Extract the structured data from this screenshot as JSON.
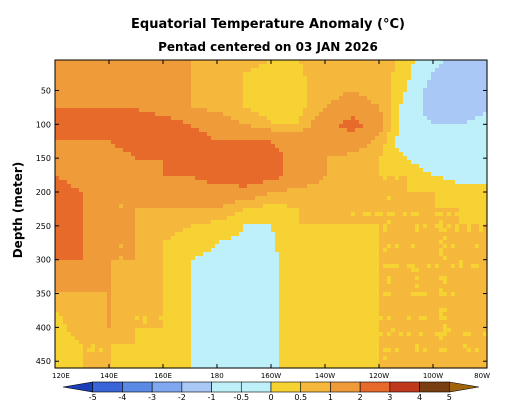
{
  "chart_data": {
    "type": "heatmap",
    "title": "Equatorial Temperature Anomaly (°C)",
    "subtitle": "Pentad centered on 03 JAN 2026",
    "xlabel": "",
    "ylabel": "Depth (meter)",
    "x_tick_labels": [
      "120E",
      "140E",
      "160E",
      "180",
      "160W",
      "140W",
      "120W",
      "100W",
      "80W"
    ],
    "x_tick_lon_east": [
      120,
      140,
      160,
      180,
      200,
      220,
      240,
      260,
      280
    ],
    "xlim_lon_east": [
      120,
      280
    ],
    "y_tick_labels": [
      "50",
      "100",
      "150",
      "200",
      "250",
      "300",
      "350",
      "400",
      "450"
    ],
    "y_tick_values": [
      50,
      100,
      150,
      200,
      250,
      300,
      350,
      400,
      450
    ],
    "ylim_depth_m": [
      5,
      460
    ],
    "y_inverted": true,
    "colorbar": {
      "labels": [
        "-5",
        "-4",
        "-3",
        "-2",
        "-1",
        "-0.5",
        "0",
        "0.5",
        "1",
        "2",
        "3",
        "4",
        "5"
      ],
      "levels": [
        -5,
        -4,
        -3,
        -2,
        -1,
        -0.5,
        0,
        0.5,
        1,
        2,
        3,
        4,
        5
      ],
      "colors": [
        "#1c3fb8",
        "#3a65d8",
        "#5a8ae6",
        "#7fa8f0",
        "#a9c8f6",
        "#bdf0f8",
        "#bdf0f8",
        "#f6d232",
        "#f6b83c",
        "#f09b3a",
        "#e76a2a",
        "#c0391c",
        "#7a3f10",
        "#a0640a"
      ]
    },
    "field": {
      "lon": [
        120,
        130,
        140,
        150,
        160,
        170,
        180,
        190,
        200,
        210,
        220,
        230,
        240,
        250,
        260,
        270,
        280
      ],
      "depth": [
        5,
        25,
        50,
        75,
        100,
        125,
        150,
        175,
        200,
        225,
        250,
        275,
        300,
        325,
        350,
        375,
        400,
        425,
        460
      ],
      "values": [
        [
          1.0,
          1.0,
          1.0,
          1.0,
          1.0,
          1.0,
          0.7,
          0.6,
          0.5,
          0.5,
          0.8,
          1.0,
          0.8,
          0.3,
          -0.7,
          -1.5,
          -1.0
        ],
        [
          1.0,
          1.0,
          1.0,
          1.0,
          1.0,
          1.0,
          0.7,
          0.5,
          0.4,
          0.4,
          0.8,
          1.0,
          0.8,
          0.2,
          -1.0,
          -1.5,
          -1.0
        ],
        [
          1.5,
          1.5,
          1.5,
          1.5,
          1.5,
          1.0,
          0.8,
          0.5,
          0.3,
          0.3,
          0.8,
          1.0,
          0.8,
          0.0,
          -1.5,
          -2.0,
          -1.2
        ],
        [
          2.0,
          2.0,
          2.0,
          2.0,
          1.5,
          1.0,
          0.8,
          0.5,
          0.3,
          0.3,
          1.0,
          1.3,
          1.0,
          -0.3,
          -1.5,
          -1.5,
          -1.0
        ],
        [
          2.0,
          2.5,
          2.5,
          2.5,
          2.5,
          2.0,
          1.5,
          1.0,
          0.5,
          0.5,
          1.5,
          2.5,
          1.3,
          -0.5,
          -1.0,
          -1.0,
          -0.8
        ],
        [
          2.0,
          2.0,
          2.0,
          2.5,
          2.5,
          2.5,
          2.0,
          2.0,
          2.0,
          1.5,
          1.5,
          1.5,
          0.8,
          -0.5,
          -0.8,
          -0.8,
          -0.6
        ],
        [
          2.0,
          1.5,
          1.5,
          2.0,
          2.0,
          2.5,
          2.5,
          3.0,
          2.5,
          1.5,
          1.0,
          0.8,
          0.5,
          0.0,
          -0.6,
          -0.6,
          -0.5
        ],
        [
          2.0,
          1.5,
          1.0,
          1.5,
          2.0,
          2.0,
          2.5,
          3.0,
          2.5,
          1.5,
          1.0,
          0.8,
          0.5,
          0.5,
          0.0,
          -0.3,
          -0.3
        ],
        [
          2.5,
          2.0,
          1.0,
          1.0,
          1.5,
          1.5,
          1.5,
          1.5,
          1.0,
          0.8,
          0.8,
          0.8,
          0.5,
          0.5,
          0.5,
          0.3,
          0.3
        ],
        [
          2.5,
          2.0,
          1.0,
          1.0,
          1.0,
          1.0,
          1.0,
          0.5,
          0.3,
          0.5,
          0.8,
          0.5,
          0.5,
          0.5,
          0.5,
          0.5,
          0.3
        ],
        [
          2.5,
          2.0,
          1.5,
          1.0,
          0.8,
          0.5,
          0.3,
          0.0,
          0.0,
          0.5,
          0.5,
          0.5,
          0.5,
          0.5,
          0.5,
          0.5,
          0.5
        ],
        [
          2.5,
          2.0,
          1.0,
          1.0,
          0.5,
          0.2,
          0.0,
          -0.1,
          -0.1,
          0.5,
          0.2,
          0.3,
          0.5,
          0.5,
          0.5,
          0.5,
          0.5
        ],
        [
          2.0,
          2.0,
          1.0,
          1.0,
          0.5,
          0.0,
          -0.1,
          -0.2,
          -0.2,
          0.5,
          0.0,
          0.0,
          0.5,
          0.5,
          0.5,
          0.5,
          0.5
        ],
        [
          1.5,
          1.5,
          1.0,
          0.8,
          0.5,
          0.0,
          -0.2,
          -0.2,
          -0.2,
          0.5,
          0.0,
          0.0,
          0.5,
          0.5,
          0.5,
          0.5,
          0.5
        ],
        [
          1.0,
          1.0,
          1.0,
          0.8,
          0.5,
          0.0,
          -0.2,
          -0.2,
          -0.2,
          0.5,
          0.0,
          0.0,
          0.5,
          0.5,
          0.5,
          0.5,
          0.5
        ],
        [
          0.5,
          0.8,
          1.0,
          0.5,
          0.5,
          0.0,
          -0.2,
          -0.2,
          -0.2,
          0.5,
          0.0,
          0.0,
          0.5,
          0.5,
          0.5,
          0.5,
          0.5
        ],
        [
          0.3,
          0.8,
          1.0,
          0.5,
          0.5,
          0.0,
          -0.2,
          -0.2,
          -0.2,
          0.5,
          0.0,
          0.0,
          0.5,
          0.5,
          0.5,
          0.5,
          0.5
        ],
        [
          0.0,
          0.5,
          0.5,
          0.5,
          0.2,
          0.0,
          -0.2,
          -0.2,
          -0.2,
          0.5,
          0.0,
          0.0,
          0.5,
          0.5,
          0.5,
          0.5,
          0.5
        ],
        [
          0.0,
          0.5,
          0.5,
          0.3,
          0.0,
          0.0,
          -0.2,
          -0.2,
          -0.2,
          0.5,
          0.0,
          0.0,
          0.5,
          0.5,
          0.5,
          0.5,
          0.5
        ]
      ]
    }
  }
}
